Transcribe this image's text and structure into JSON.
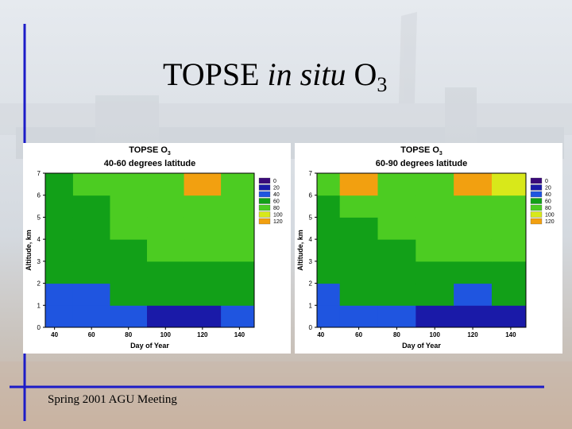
{
  "slide": {
    "title_main": "TOPSE ",
    "title_italic": "in situ",
    "title_species": " O",
    "title_sub": "3",
    "footer": "Spring 2001 AGU Meeting"
  },
  "colors": {
    "frame_line": "#1c1cc8",
    "palette": [
      "#3a0a7a",
      "#1a1aa8",
      "#1f55e0",
      "#12a018",
      "#4ccc22",
      "#d8e81a",
      "#f2a010",
      "#e83818"
    ]
  },
  "chart_data": [
    {
      "type": "heatmap",
      "title": "TOPSE O",
      "title_sub": "3",
      "subtitle": "40-60 degrees latitude",
      "xlabel": "Day of Year",
      "ylabel": "Altitude, km",
      "xlim": [
        35,
        148
      ],
      "ylim": [
        0,
        7
      ],
      "xticks": [
        "40",
        "60",
        "80",
        "100",
        "120",
        "140"
      ],
      "yticks": [
        "0",
        "1",
        "2",
        "3",
        "4",
        "5",
        "6",
        "7"
      ],
      "legend": [
        "0",
        "20",
        "40",
        "60",
        "80",
        "100",
        "120"
      ],
      "legend_position": "right",
      "x": [
        40,
        60,
        80,
        100,
        120,
        140
      ],
      "y": [
        0.5,
        1.5,
        2.5,
        3.5,
        4.5,
        5.5,
        6.5
      ],
      "z": [
        [
          25,
          25,
          20,
          15,
          15,
          20
        ],
        [
          35,
          35,
          40,
          45,
          45,
          40
        ],
        [
          40,
          40,
          45,
          50,
          50,
          50
        ],
        [
          45,
          50,
          55,
          60,
          60,
          60
        ],
        [
          45,
          55,
          60,
          65,
          70,
          65
        ],
        [
          50,
          55,
          65,
          70,
          75,
          70
        ],
        [
          50,
          60,
          70,
          75,
          105,
          75
        ]
      ]
    },
    {
      "type": "heatmap",
      "title": "TOPSE O",
      "title_sub": "3",
      "subtitle": "60-90 degrees latitude",
      "xlabel": "Day of Year",
      "ylabel": "Altitude, km",
      "xlim": [
        38,
        148
      ],
      "ylim": [
        0,
        7
      ],
      "xticks": [
        "40",
        "60",
        "80",
        "100",
        "120",
        "140"
      ],
      "yticks": [
        "0",
        "1",
        "2",
        "3",
        "4",
        "5",
        "6",
        "7"
      ],
      "legend": [
        "0",
        "20",
        "40",
        "60",
        "80",
        "100",
        "120"
      ],
      "legend_position": "right",
      "x": [
        40,
        60,
        80,
        100,
        120,
        140
      ],
      "y": [
        0.5,
        1.5,
        2.5,
        3.5,
        4.5,
        5.5,
        6.5
      ],
      "z": [
        [
          30,
          25,
          20,
          15,
          10,
          15
        ],
        [
          35,
          40,
          40,
          40,
          35,
          40
        ],
        [
          40,
          45,
          50,
          50,
          55,
          55
        ],
        [
          45,
          50,
          55,
          60,
          65,
          60
        ],
        [
          50,
          55,
          60,
          65,
          70,
          65
        ],
        [
          55,
          60,
          65,
          70,
          75,
          70
        ],
        [
          60,
          100,
          75,
          70,
          105,
          80
        ]
      ]
    }
  ]
}
